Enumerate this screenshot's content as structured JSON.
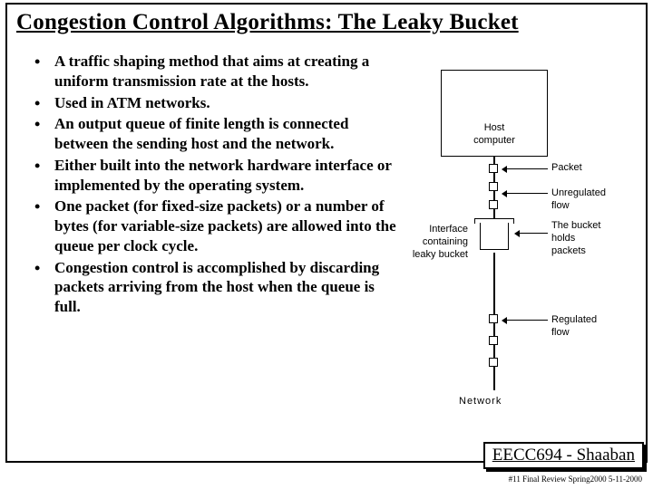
{
  "title": "Congestion Control Algorithms: The Leaky Bucket",
  "bullets": [
    "A traffic shaping method that aims at creating a uniform transmission rate at the hosts.",
    "Used in ATM networks.",
    "An output queue of finite length  is connected between the sending host and the network.",
    "Either built into the network hardware interface or implemented by the operating system.",
    "One packet (for fixed-size packets) or a number of bytes (for variable-size packets) are allowed into the queue per clock cycle.",
    "Congestion control is accomplished by discarding packets arriving from the host when the queue is full."
  ],
  "diagram": {
    "host_label_1": "Host",
    "host_label_2": "computer",
    "packet_label": "Packet",
    "unregulated_label_1": "Unregulated",
    "unregulated_label_2": "flow",
    "bucket_label_1": "The bucket",
    "bucket_label_2": "holds",
    "bucket_label_3": "packets",
    "regulated_label_1": "Regulated",
    "regulated_label_2": "flow",
    "interface_label_1": "Interface",
    "interface_label_2": "containing",
    "interface_label_3": "leaky bucket",
    "network_label": "Network",
    "colors": {
      "line": "#000000",
      "bg": "#ffffff"
    }
  },
  "footer": {
    "box": "EECC694 - Shaaban",
    "sub": "#11 Final Review  Spring2000    5-11-2000"
  }
}
